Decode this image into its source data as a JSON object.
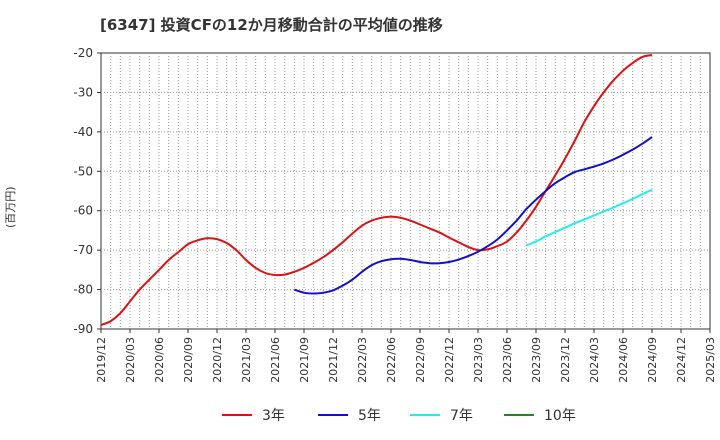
{
  "chart_data": {
    "type": "line",
    "title": "[6347]  投資CFの12か月移動合計の平均値の推移",
    "ylabel": "(百万円)",
    "xlabel": "",
    "ylim": [
      -90,
      -20
    ],
    "yticks": [
      -20,
      -30,
      -40,
      -50,
      -60,
      -70,
      -80,
      -90
    ],
    "xticks": [
      "2019/12",
      "2020/03",
      "2020/06",
      "2020/09",
      "2020/12",
      "2021/03",
      "2021/06",
      "2021/09",
      "2021/12",
      "2022/03",
      "2022/06",
      "2022/09",
      "2022/12",
      "2023/03",
      "2023/06",
      "2023/09",
      "2023/12",
      "2024/03",
      "2024/06",
      "2024/09",
      "2024/12",
      "2025/03"
    ],
    "grid": true,
    "legend_position": "bottom",
    "series": [
      {
        "name": "3年",
        "color": "#dd1111",
        "x": [
          "2019/12",
          "2020/01",
          "2020/02",
          "2020/03",
          "2020/04",
          "2020/05",
          "2020/06",
          "2020/07",
          "2020/08",
          "2020/09",
          "2020/10",
          "2020/11",
          "2020/12",
          "2021/01",
          "2021/02",
          "2021/03",
          "2021/04",
          "2021/05",
          "2021/06",
          "2021/07",
          "2021/08",
          "2021/09",
          "2021/10",
          "2021/11",
          "2021/12",
          "2022/01",
          "2022/02",
          "2022/03",
          "2022/04",
          "2022/05",
          "2022/06",
          "2022/07",
          "2022/08",
          "2022/09",
          "2022/10",
          "2022/11",
          "2022/12",
          "2023/01",
          "2023/02",
          "2023/03",
          "2023/04",
          "2023/05",
          "2023/06",
          "2023/07",
          "2023/08",
          "2023/09",
          "2023/10",
          "2023/11",
          "2023/12",
          "2024/01",
          "2024/02",
          "2024/03",
          "2024/04",
          "2024/05",
          "2024/06",
          "2024/07",
          "2024/08",
          "2024/09"
        ],
        "values": [
          -89.0,
          -88.0,
          -86.0,
          -83.0,
          -80.0,
          -77.5,
          -75.0,
          -72.5,
          -70.5,
          -68.5,
          -67.5,
          -67.0,
          -67.2,
          -68.2,
          -70.0,
          -72.5,
          -74.5,
          -75.8,
          -76.3,
          -76.2,
          -75.5,
          -74.5,
          -73.2,
          -71.8,
          -70.0,
          -68.0,
          -65.8,
          -63.8,
          -62.5,
          -61.8,
          -61.5,
          -61.8,
          -62.5,
          -63.5,
          -64.5,
          -65.5,
          -66.8,
          -68.0,
          -69.2,
          -70.0,
          -69.8,
          -69.0,
          -67.8,
          -65.5,
          -62.5,
          -59.0,
          -55.0,
          -51.0,
          -46.8,
          -42.3,
          -37.5,
          -33.5,
          -30.0,
          -27.0,
          -24.5,
          -22.5,
          -21.0,
          -20.5
        ]
      },
      {
        "name": "5年",
        "color": "#1111cc",
        "x": [
          "2021/08",
          "2021/09",
          "2021/10",
          "2021/11",
          "2021/12",
          "2022/01",
          "2022/02",
          "2022/03",
          "2022/04",
          "2022/05",
          "2022/06",
          "2022/07",
          "2022/08",
          "2022/09",
          "2022/10",
          "2022/11",
          "2022/12",
          "2023/01",
          "2023/02",
          "2023/03",
          "2023/04",
          "2023/05",
          "2023/06",
          "2023/07",
          "2023/08",
          "2023/09",
          "2023/10",
          "2023/11",
          "2023/12",
          "2024/01",
          "2024/02",
          "2024/03",
          "2024/04",
          "2024/05",
          "2024/06",
          "2024/07",
          "2024/08",
          "2024/09"
        ],
        "values": [
          -80.0,
          -80.8,
          -81.0,
          -80.8,
          -80.2,
          -79.0,
          -77.5,
          -75.5,
          -73.8,
          -72.8,
          -72.3,
          -72.2,
          -72.5,
          -73.0,
          -73.3,
          -73.3,
          -73.0,
          -72.4,
          -71.5,
          -70.4,
          -69.0,
          -67.3,
          -65.0,
          -62.5,
          -59.6,
          -57.2,
          -55.0,
          -53.0,
          -51.5,
          -50.2,
          -49.5,
          -48.8,
          -48.0,
          -47.0,
          -45.8,
          -44.5,
          -43.0,
          -41.3
        ]
      },
      {
        "name": "7年",
        "color": "#22eeee",
        "x": [
          "2023/08",
          "2023/09",
          "2023/10",
          "2023/11",
          "2023/12",
          "2024/01",
          "2024/02",
          "2024/03",
          "2024/04",
          "2024/05",
          "2024/06",
          "2024/07",
          "2024/08",
          "2024/09"
        ],
        "values": [
          -68.8,
          -67.8,
          -66.5,
          -65.4,
          -64.3,
          -63.2,
          -62.2,
          -61.2,
          -60.2,
          -59.2,
          -58.1,
          -57.0,
          -55.8,
          -54.7
        ]
      },
      {
        "name": "10年",
        "color": "#228822",
        "x": [],
        "values": []
      }
    ]
  }
}
